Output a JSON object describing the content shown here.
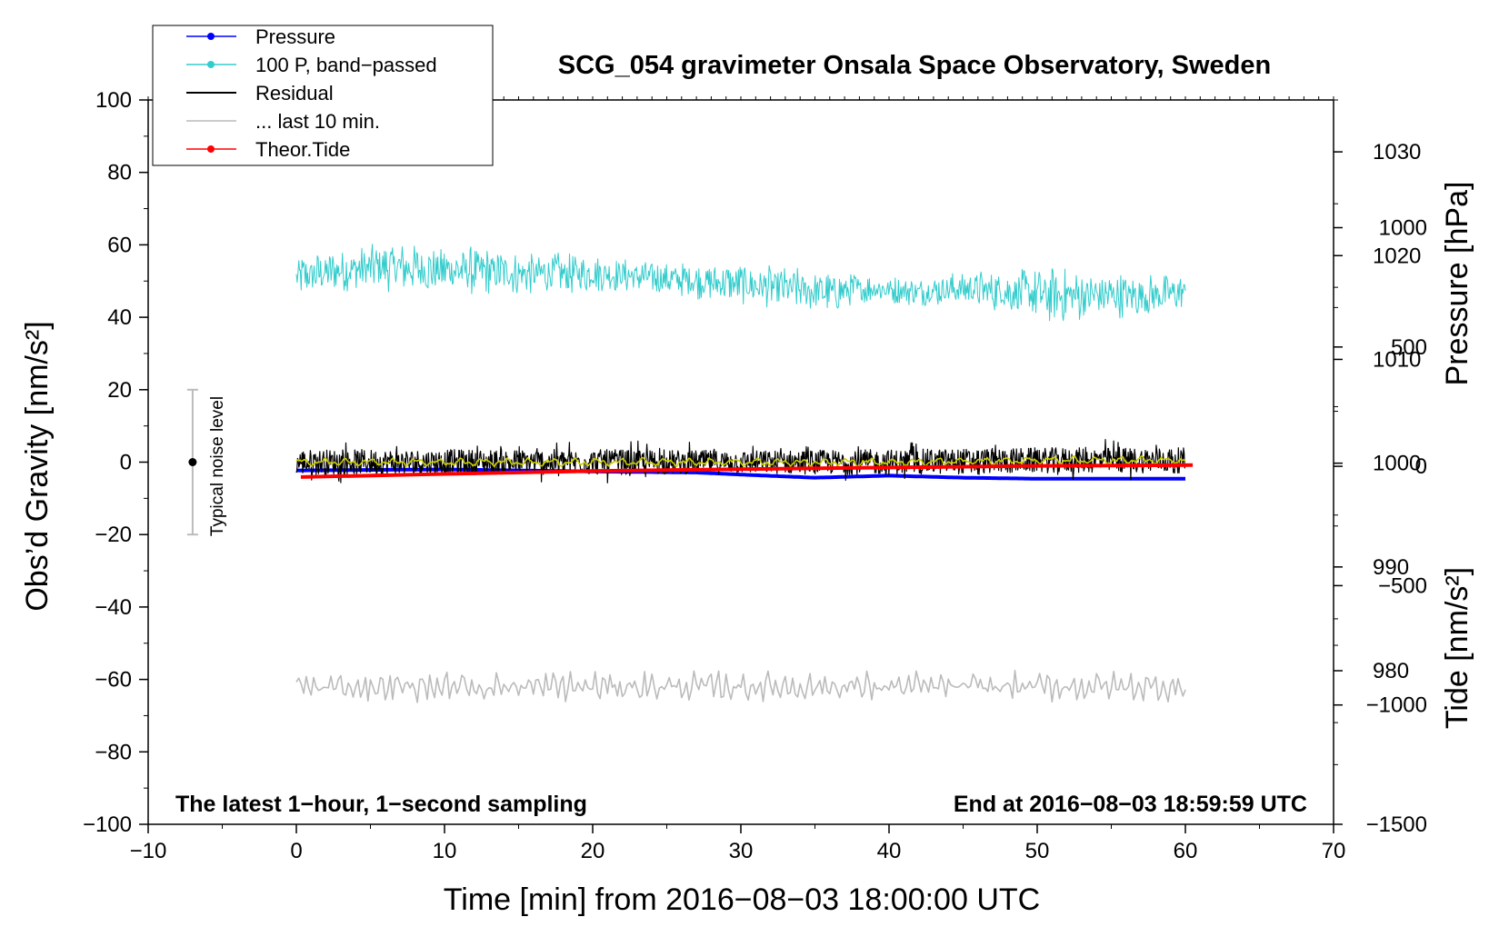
{
  "chart_data": {
    "type": "line",
    "title": "SCG_054 gravimeter Onsala Space Observatory, Sweden",
    "xlabel": "Time [min] from 2016−08−03 18:00:00 UTC",
    "ylabel_left": "Obs’d Gravity [nm/s²]",
    "ylabel_right_top": "Pressure [hPa]",
    "ylabel_right_bottom": "Tide [nm/s²]",
    "note_left": "The latest 1−hour, 1−second sampling",
    "note_right": "End at 2016−08−03 18:59:59 UTC",
    "noise_label": "Typical noise level",
    "noise_bar": {
      "x": -7,
      "center": 0,
      "low": -20,
      "high": 20
    },
    "xlim": [
      -10,
      70
    ],
    "ylim": [
      -100,
      100
    ],
    "pressure_lim": [
      965.2,
      1035.0
    ],
    "tide_lim": [
      -1500,
      1535
    ],
    "x_ticks": [
      -10,
      0,
      10,
      20,
      30,
      40,
      50,
      60,
      70
    ],
    "x_tick_labels": [
      "−10",
      "0",
      "10",
      "20",
      "30",
      "40",
      "50",
      "60",
      "70"
    ],
    "y_ticks": [
      100,
      80,
      60,
      40,
      20,
      0,
      -20,
      -40,
      -60,
      -80,
      -100
    ],
    "y_tick_labels": [
      "100",
      "80",
      "60",
      "40",
      "20",
      "0",
      "−20",
      "−40",
      "−60",
      "−80",
      "−100"
    ],
    "pressure_ticks": [
      1030,
      1020,
      1010,
      1000,
      990,
      980
    ],
    "pressure_tick_labels": [
      "1030",
      "1020",
      "1010",
      "1000",
      "990",
      "980"
    ],
    "tide_ticks": [
      1000,
      500,
      0,
      -500,
      -1000,
      -1500
    ],
    "tide_tick_labels": [
      "1000",
      "500",
      "0",
      "−500",
      "−1000",
      "−1500"
    ],
    "legend": [
      {
        "label": "Pressure",
        "color": "#0000ff",
        "marker": true
      },
      {
        "label": "100 P, band−passed",
        "color": "#33cccc",
        "marker": true
      },
      {
        "label": "Residual",
        "color": "#000000",
        "marker": false
      },
      {
        "label": "... last 10 min.",
        "color": "#bbbbbb",
        "marker": false
      },
      {
        "label": "Theor.Tide",
        "color": "#ff0000",
        "marker": true
      }
    ],
    "series": [
      {
        "name": "Pressure",
        "axis": "pressure",
        "color": "#0000ff",
        "x": [
          0,
          10,
          20,
          27,
          30,
          35,
          40,
          45,
          50,
          55,
          60
        ],
        "values": [
          999.3,
          999.4,
          999.2,
          999.1,
          998.9,
          998.6,
          998.8,
          998.6,
          998.5,
          998.5,
          998.5
        ]
      },
      {
        "name": "100 P, band−passed",
        "axis": "gravity",
        "color": "#33cccc",
        "x": [
          0,
          3,
          6,
          9,
          12,
          15,
          18,
          21,
          24,
          27,
          30,
          33,
          36,
          39,
          42,
          45,
          48,
          51,
          54,
          57,
          60
        ],
        "values": [
          51,
          53,
          54,
          53,
          53,
          52,
          52,
          52,
          51,
          50,
          49,
          48,
          47,
          48,
          47,
          48,
          47,
          46,
          46,
          46,
          47
        ],
        "amplitude": [
          6,
          6,
          7,
          7,
          7,
          6,
          6,
          5,
          5,
          5,
          6,
          6,
          6,
          4,
          4,
          5,
          6,
          8,
          7,
          6,
          5
        ]
      },
      {
        "name": "Residual",
        "axis": "gravity",
        "color": "#000000",
        "x": [
          0,
          10,
          20,
          30,
          40,
          50,
          60
        ],
        "values": [
          0,
          0,
          0,
          0,
          0,
          0.5,
          0.5
        ],
        "amplitude": [
          3.5,
          3.5,
          3.5,
          3.2,
          3.5,
          3.5,
          3.5
        ]
      },
      {
        "name": "Residual smoothed",
        "axis": "gravity",
        "color": "#cccc00",
        "x": [
          0,
          10,
          20,
          30,
          40,
          50,
          60
        ],
        "values": [
          0,
          0,
          0,
          0,
          0,
          0.5,
          0.5
        ],
        "amplitude": [
          1,
          1,
          1,
          1,
          1,
          1,
          1
        ]
      },
      {
        "name": "... last 10 min.",
        "axis": "gravity",
        "color": "#bbbbbb",
        "x": [
          0,
          10,
          20,
          30,
          40,
          50,
          60
        ],
        "values": [
          -62,
          -62,
          -62,
          -62,
          -62,
          -62,
          -62
        ],
        "amplitude": [
          3,
          3,
          3,
          3,
          3,
          3,
          3
        ]
      },
      {
        "name": "Theor.Tide",
        "axis": "tide",
        "color": "#ff0000",
        "x": [
          0.3,
          10,
          20,
          30,
          40,
          50,
          60.5
        ],
        "values": [
          -45,
          -32,
          -20,
          -12,
          -5,
          2,
          5
        ]
      }
    ]
  }
}
